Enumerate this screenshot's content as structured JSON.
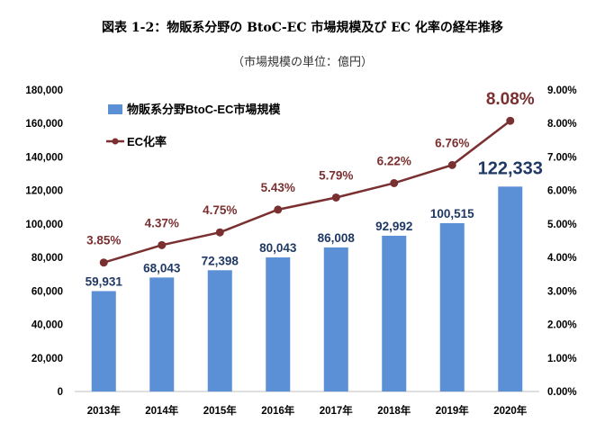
{
  "chart_data": {
    "type": "bar+line",
    "title": "図表 1-2：物販系分野の BtoC-EC 市場規模及び EC 化率の経年推移",
    "subtitle": "（市場規模の単位：億円）",
    "categories": [
      "2013年",
      "2014年",
      "2015年",
      "2016年",
      "2017年",
      "2018年",
      "2019年",
      "2020年"
    ],
    "series": [
      {
        "name": "物販系分野BtoC-EC市場規模",
        "type": "bar",
        "axis": "left",
        "values": [
          59931,
          68043,
          72398,
          80043,
          86008,
          92992,
          100515,
          122333
        ],
        "labels": [
          "59,931",
          "68,043",
          "72,398",
          "80,043",
          "86,008",
          "92,992",
          "100,515",
          "122,333"
        ],
        "color": "#5b8fd6"
      },
      {
        "name": "EC化率",
        "type": "line",
        "axis": "right",
        "values": [
          3.85,
          4.37,
          4.75,
          5.43,
          5.79,
          6.22,
          6.76,
          8.08
        ],
        "labels": [
          "3.85%",
          "4.37%",
          "4.75%",
          "5.43%",
          "5.79%",
          "6.22%",
          "6.76%",
          "8.08%"
        ],
        "color": "#7a3030"
      }
    ],
    "left_axis": {
      "min": 0,
      "max": 180000,
      "step": 20000,
      "tick_labels": [
        "0",
        "20,000",
        "40,000",
        "60,000",
        "80,000",
        "100,000",
        "120,000",
        "140,000",
        "160,000",
        "180,000"
      ]
    },
    "right_axis": {
      "min": 0,
      "max": 9,
      "step": 1,
      "tick_labels": [
        "0.00%",
        "1.00%",
        "2.00%",
        "3.00%",
        "4.00%",
        "5.00%",
        "6.00%",
        "7.00%",
        "8.00%",
        "9.00%"
      ]
    },
    "legend_position": "top-left",
    "colors": {
      "bar_label": "#1f3864",
      "line_label": "#7a3030",
      "axis_text": "#000000"
    }
  }
}
